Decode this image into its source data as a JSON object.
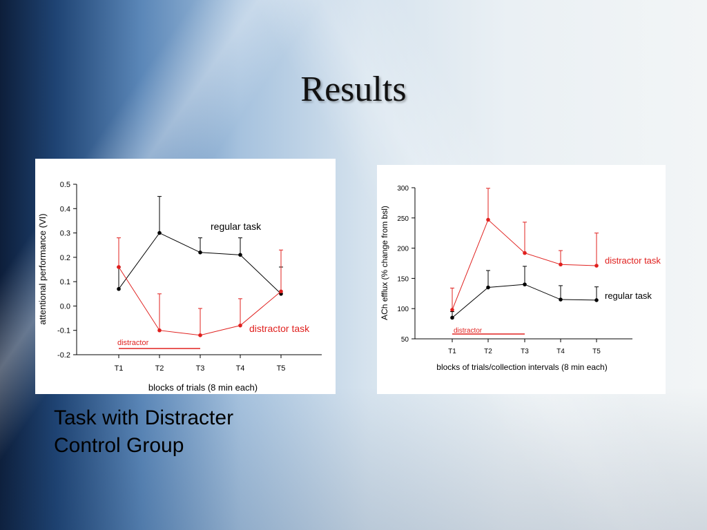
{
  "slide": {
    "title": "Results"
  },
  "caption": {
    "line1": "Task with Distracter",
    "line2": "Control Group"
  },
  "colors": {
    "regular": "#000000",
    "distractor": "#e0201e"
  },
  "chart_data": [
    {
      "type": "line",
      "title": "",
      "xlabel": "blocks of trials (8 min each)",
      "ylabel": "attentional performance (VI)",
      "categories": [
        "T1",
        "T2",
        "T3",
        "T4",
        "T5"
      ],
      "ylim": [
        -0.2,
        0.5
      ],
      "yticks": [
        "0.5",
        "0.4",
        "0.3",
        "0.2",
        "0.1",
        "0.0",
        "-0.1",
        "-0.2"
      ],
      "series": [
        {
          "name": "regular task",
          "color": "#000000",
          "values": [
            0.07,
            0.3,
            0.22,
            0.21,
            0.05
          ],
          "error": [
            0.09,
            0.15,
            0.06,
            0.07,
            0.11
          ],
          "error_dir": "up"
        },
        {
          "name": "distractor task",
          "color": "#e0201e",
          "values": [
            0.16,
            -0.1,
            -0.12,
            -0.08,
            0.06
          ],
          "error": [
            0.12,
            0.15,
            0.11,
            0.11,
            0.17
          ],
          "error_dir": "up"
        }
      ],
      "bar_label": "distractor",
      "bar_span": [
        "T1",
        "T3"
      ],
      "grid": false
    },
    {
      "type": "line",
      "title": "",
      "xlabel": "blocks of trials/collection intervals (8 min each)",
      "ylabel": "ACh efflux (% change from bsl)",
      "categories": [
        "T1",
        "T2",
        "T3",
        "T4",
        "T5"
      ],
      "ylim": [
        50,
        300
      ],
      "yticks": [
        "300",
        "250",
        "200",
        "150",
        "100",
        "50"
      ],
      "series": [
        {
          "name": "distractor task",
          "color": "#e0201e",
          "values": [
            98,
            247,
            192,
            173,
            171
          ],
          "error": [
            36,
            52,
            51,
            23,
            54
          ],
          "error_dir": "up"
        },
        {
          "name": "regular task",
          "color": "#000000",
          "values": [
            85,
            135,
            140,
            115,
            114
          ],
          "error": [
            10,
            28,
            30,
            23,
            22
          ],
          "error_dir": "up"
        }
      ],
      "bar_label": "distractor",
      "bar_span": [
        "T1",
        "T3"
      ],
      "grid": false
    }
  ]
}
